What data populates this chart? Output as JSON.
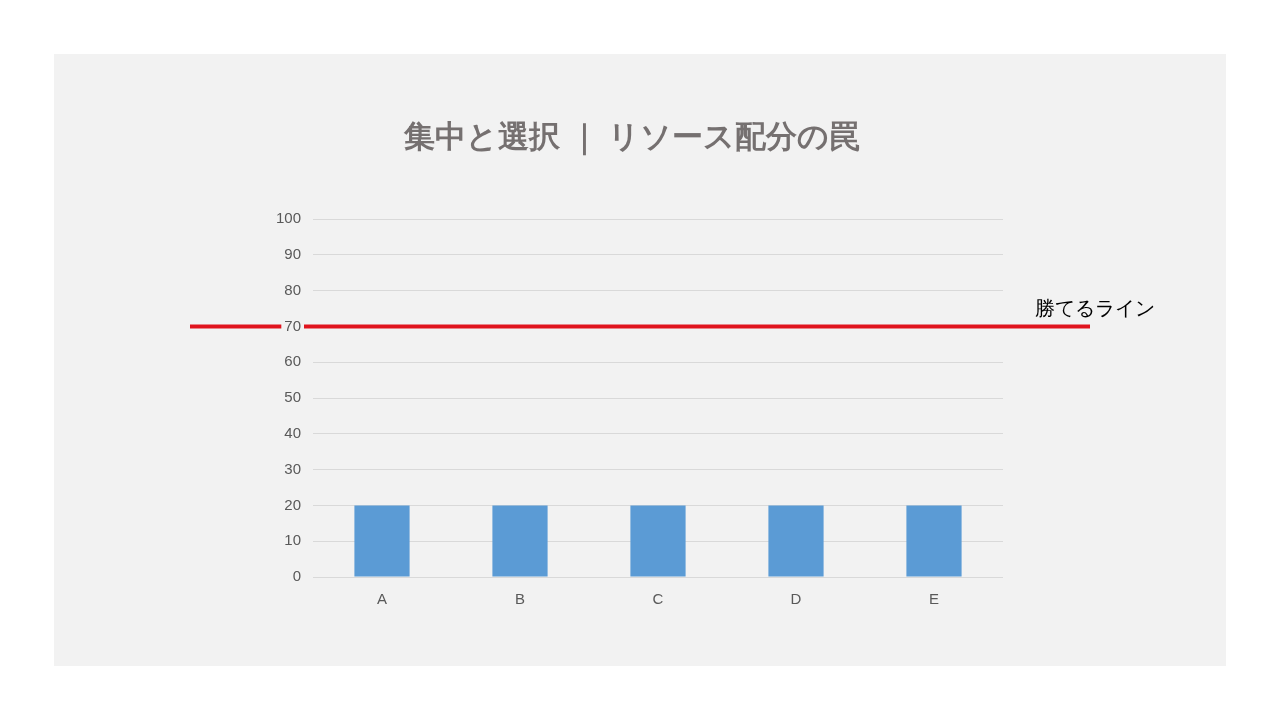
{
  "chart_data": {
    "type": "bar",
    "title": "集中と選択 ｜ リソース配分の罠",
    "categories": [
      "A",
      "B",
      "C",
      "D",
      "E"
    ],
    "values": [
      20,
      20,
      20,
      20,
      20
    ],
    "color": "#5b9bd5",
    "ylim": [
      0,
      100
    ],
    "yticks": [
      0,
      10,
      20,
      30,
      40,
      50,
      60,
      70,
      80,
      90,
      100
    ],
    "grid": "y",
    "ref_lines": [
      {
        "axis": "y",
        "value": 70,
        "label": "勝てるライン",
        "color": "#e0141e"
      }
    ]
  }
}
